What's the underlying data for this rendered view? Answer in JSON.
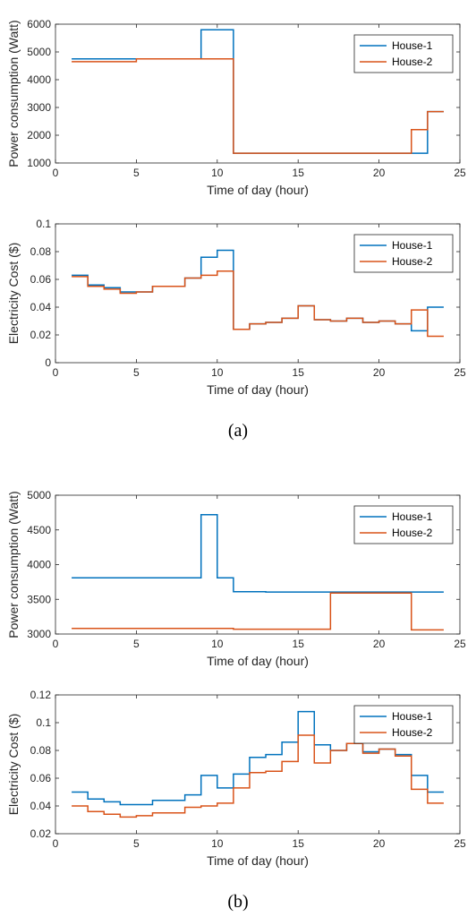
{
  "captions": [
    "(a)",
    "(b)"
  ],
  "colors": {
    "house1": "#0072BD",
    "house2": "#D95319"
  },
  "chart_data": [
    {
      "type": "line",
      "step": true,
      "xlabel": "Time of day (hour)",
      "ylabel": "Power consumption (Watt)",
      "xlim": [
        0,
        25
      ],
      "ylim": [
        1000,
        6000
      ],
      "xticks": [
        0,
        5,
        10,
        15,
        20,
        25
      ],
      "yticks": [
        1000,
        2000,
        3000,
        4000,
        5000,
        6000
      ],
      "yticklabels": [
        "1000",
        "2000",
        "3000",
        "4000",
        "5000",
        "6000"
      ],
      "legend": "top-right",
      "series": [
        {
          "name": "House-1",
          "color": "#0072BD",
          "x": [
            1,
            2,
            3,
            4,
            5,
            6,
            7,
            8,
            9,
            10,
            11,
            12,
            13,
            14,
            15,
            16,
            17,
            18,
            19,
            20,
            21,
            22,
            23,
            24
          ],
          "values": [
            4750,
            4750,
            4750,
            4750,
            4750,
            4750,
            4750,
            4750,
            5800,
            5800,
            1350,
            1350,
            1350,
            1350,
            1350,
            1350,
            1350,
            1350,
            1350,
            1350,
            1350,
            1350,
            2850,
            2850
          ]
        },
        {
          "name": "House-2",
          "color": "#D95319",
          "x": [
            1,
            2,
            3,
            4,
            5,
            6,
            7,
            8,
            9,
            10,
            11,
            12,
            13,
            14,
            15,
            16,
            17,
            18,
            19,
            20,
            21,
            22,
            23,
            24
          ],
          "values": [
            4650,
            4650,
            4650,
            4650,
            4750,
            4750,
            4750,
            4750,
            4750,
            4750,
            1350,
            1350,
            1350,
            1350,
            1350,
            1350,
            1350,
            1350,
            1350,
            1350,
            1350,
            2200,
            2850,
            2850
          ]
        }
      ]
    },
    {
      "type": "line",
      "step": true,
      "xlabel": "Time of day (hour)",
      "ylabel": "Electricity Cost ($)",
      "xlim": [
        0,
        25
      ],
      "ylim": [
        0,
        0.1
      ],
      "xticks": [
        0,
        5,
        10,
        15,
        20,
        25
      ],
      "yticks": [
        0,
        0.02,
        0.04,
        0.06,
        0.08,
        0.1
      ],
      "yticklabels": [
        "0",
        "0.02",
        "0.04",
        "0.06",
        "0.08",
        "0.1"
      ],
      "legend": "top-right",
      "series": [
        {
          "name": "House-1",
          "color": "#0072BD",
          "x": [
            1,
            2,
            3,
            4,
            5,
            6,
            7,
            8,
            9,
            10,
            11,
            12,
            13,
            14,
            15,
            16,
            17,
            18,
            19,
            20,
            21,
            22,
            23,
            24
          ],
          "values": [
            0.063,
            0.056,
            0.054,
            0.051,
            0.051,
            0.055,
            0.055,
            0.061,
            0.076,
            0.081,
            0.024,
            0.028,
            0.029,
            0.032,
            0.041,
            0.031,
            0.03,
            0.032,
            0.029,
            0.03,
            0.028,
            0.023,
            0.04,
            0.04
          ]
        },
        {
          "name": "House-2",
          "color": "#D95319",
          "x": [
            1,
            2,
            3,
            4,
            5,
            6,
            7,
            8,
            9,
            10,
            11,
            12,
            13,
            14,
            15,
            16,
            17,
            18,
            19,
            20,
            21,
            22,
            23,
            24
          ],
          "values": [
            0.062,
            0.055,
            0.053,
            0.05,
            0.051,
            0.055,
            0.055,
            0.061,
            0.063,
            0.066,
            0.024,
            0.028,
            0.029,
            0.032,
            0.041,
            0.031,
            0.03,
            0.032,
            0.029,
            0.03,
            0.028,
            0.038,
            0.019,
            0.019
          ]
        }
      ]
    },
    {
      "type": "line",
      "step": true,
      "xlabel": "Time of day (hour)",
      "ylabel": "Power consumption (Watt)",
      "xlim": [
        0,
        25
      ],
      "ylim": [
        3000,
        5000
      ],
      "xticks": [
        0,
        5,
        10,
        15,
        20,
        25
      ],
      "yticks": [
        3000,
        3500,
        4000,
        4500,
        5000
      ],
      "yticklabels": [
        "3000",
        "3500",
        "4000",
        "4500",
        "5000"
      ],
      "legend": "top-right",
      "series": [
        {
          "name": "House-1",
          "color": "#0072BD",
          "x": [
            1,
            2,
            3,
            4,
            5,
            6,
            7,
            8,
            9,
            10,
            11,
            12,
            13,
            14,
            15,
            16,
            17,
            18,
            19,
            20,
            21,
            22,
            23,
            24
          ],
          "values": [
            3810,
            3810,
            3810,
            3810,
            3810,
            3810,
            3810,
            3810,
            4720,
            3810,
            3610,
            3610,
            3605,
            3605,
            3605,
            3605,
            3605,
            3605,
            3605,
            3605,
            3605,
            3605,
            3605,
            3605
          ]
        },
        {
          "name": "House-2",
          "color": "#D95319",
          "x": [
            1,
            2,
            3,
            4,
            5,
            6,
            7,
            8,
            9,
            10,
            11,
            12,
            13,
            14,
            15,
            16,
            17,
            18,
            19,
            20,
            21,
            22,
            23,
            24
          ],
          "values": [
            3080,
            3080,
            3080,
            3080,
            3080,
            3080,
            3080,
            3080,
            3080,
            3080,
            3070,
            3070,
            3070,
            3070,
            3070,
            3070,
            3590,
            3590,
            3590,
            3590,
            3590,
            3060,
            3060,
            3060
          ]
        }
      ]
    },
    {
      "type": "line",
      "step": true,
      "xlabel": "Time of day (hour)",
      "ylabel": "Electricity Cost ($)",
      "xlim": [
        0,
        25
      ],
      "ylim": [
        0.02,
        0.12
      ],
      "xticks": [
        0,
        5,
        10,
        15,
        20,
        25
      ],
      "yticks": [
        0.02,
        0.04,
        0.06,
        0.08,
        0.1,
        0.12
      ],
      "yticklabels": [
        "0.02",
        "0.04",
        "0.06",
        "0.08",
        "0.1",
        "0.12"
      ],
      "legend": "top-right",
      "series": [
        {
          "name": "House-1",
          "color": "#0072BD",
          "x": [
            1,
            2,
            3,
            4,
            5,
            6,
            7,
            8,
            9,
            10,
            11,
            12,
            13,
            14,
            15,
            16,
            17,
            18,
            19,
            20,
            21,
            22,
            23,
            24
          ],
          "values": [
            0.05,
            0.045,
            0.043,
            0.041,
            0.041,
            0.044,
            0.044,
            0.048,
            0.062,
            0.053,
            0.063,
            0.075,
            0.077,
            0.086,
            0.108,
            0.084,
            0.08,
            0.085,
            0.079,
            0.081,
            0.077,
            0.062,
            0.05,
            0.05
          ]
        },
        {
          "name": "House-2",
          "color": "#D95319",
          "x": [
            1,
            2,
            3,
            4,
            5,
            6,
            7,
            8,
            9,
            10,
            11,
            12,
            13,
            14,
            15,
            16,
            17,
            18,
            19,
            20,
            21,
            22,
            23,
            24
          ],
          "values": [
            0.04,
            0.036,
            0.034,
            0.032,
            0.033,
            0.035,
            0.035,
            0.039,
            0.04,
            0.042,
            0.053,
            0.064,
            0.065,
            0.072,
            0.091,
            0.071,
            0.08,
            0.085,
            0.078,
            0.081,
            0.076,
            0.052,
            0.042,
            0.042
          ]
        }
      ]
    }
  ]
}
